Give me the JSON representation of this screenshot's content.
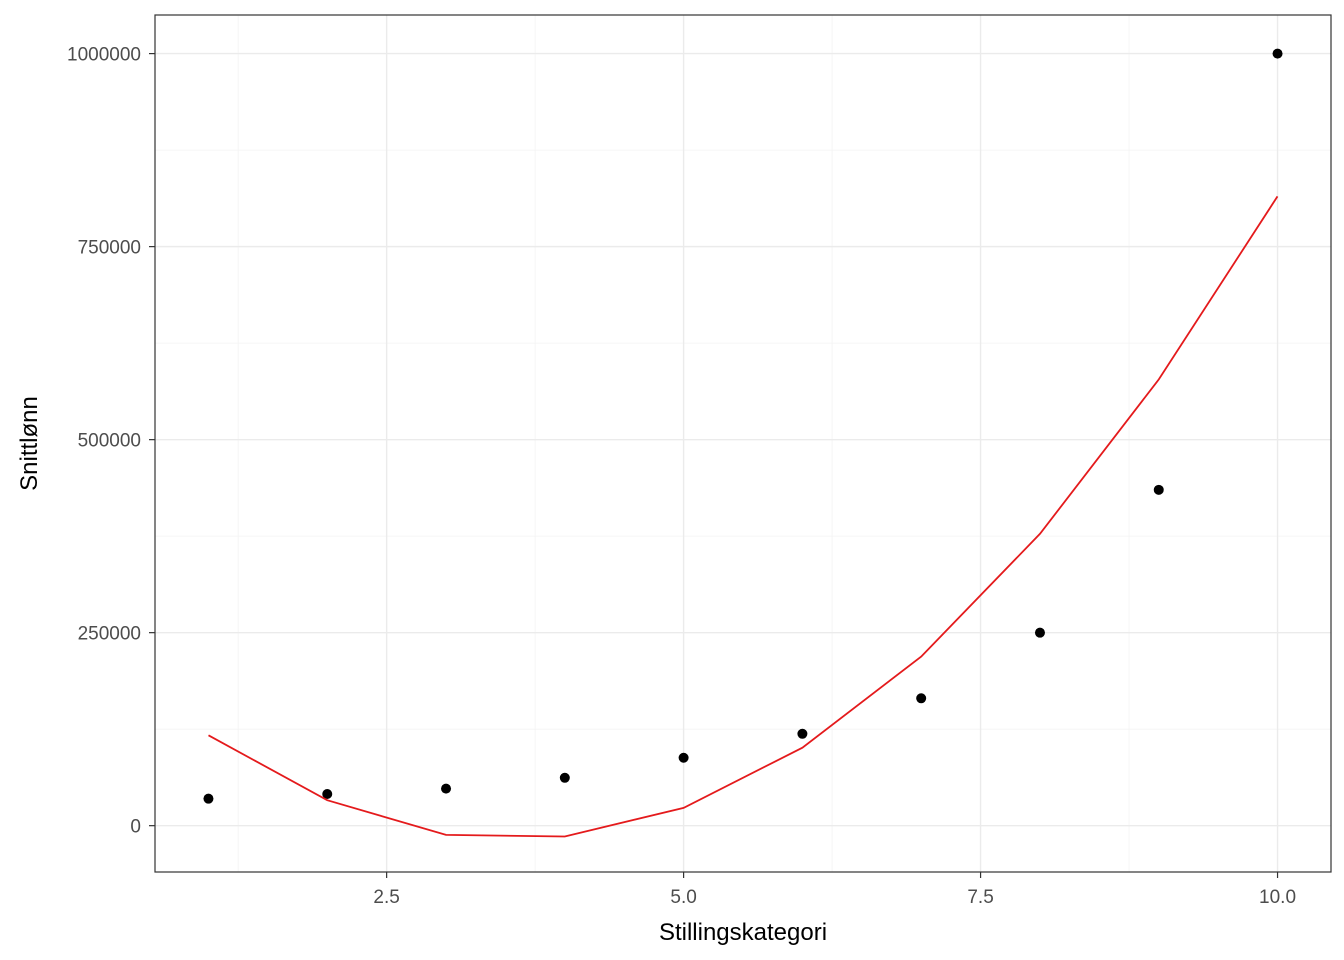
{
  "chart_data": {
    "type": "scatter",
    "xlabel": "Stillingskategori",
    "ylabel": "Snittlønn",
    "xlim": [
      0.55,
      10.45
    ],
    "ylim": [
      -60000,
      1050000
    ],
    "x_ticks": [
      2.5,
      5.0,
      7.5,
      10.0
    ],
    "x_tick_labels": [
      "2.5",
      "5.0",
      "7.5",
      "10.0"
    ],
    "y_ticks": [
      0,
      250000,
      500000,
      750000,
      1000000
    ],
    "y_tick_labels": [
      "0",
      "250000",
      "500000",
      "750000",
      "1000000"
    ],
    "grid": true,
    "series": [
      {
        "type": "scatter",
        "color": "#000000",
        "x": [
          1,
          2,
          3,
          4,
          5,
          6,
          7,
          8,
          9,
          10
        ],
        "y": [
          35000,
          41000,
          48000,
          62000,
          88000,
          119000,
          165000,
          250000,
          435000,
          1000000
        ]
      },
      {
        "type": "line",
        "color": "#e41a1c",
        "x": [
          1,
          2,
          3,
          4,
          5,
          6,
          7,
          8,
          9,
          10
        ],
        "y": [
          117000,
          33000,
          -12000,
          -14000,
          23000,
          101000,
          219000,
          378000,
          578000,
          815000
        ]
      }
    ]
  }
}
